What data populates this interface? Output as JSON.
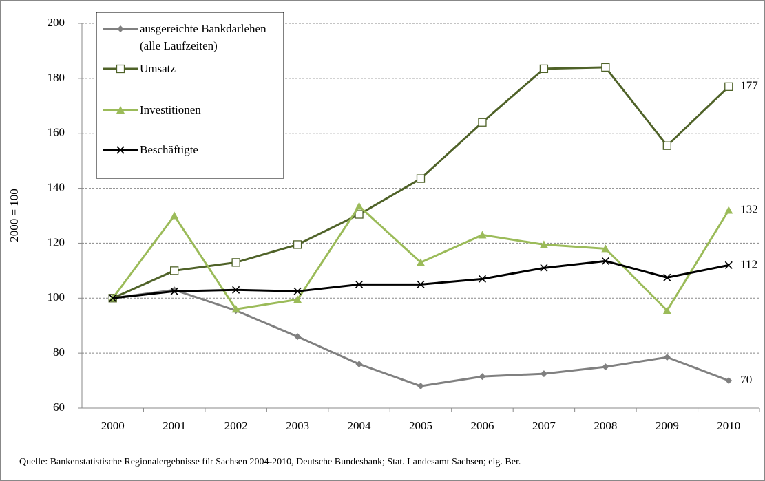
{
  "chart_data": {
    "type": "line",
    "y_axis_label": "2000 = 100",
    "source": "Quelle: Bankenstatistische Regionalergebnisse  für Sachsen 2004-2010, Deutsche Bundesbank; Stat. Landesamt Sachsen; eig. Ber.",
    "categories": [
      "2000",
      "2001",
      "2002",
      "2003",
      "2004",
      "2005",
      "2006",
      "2007",
      "2008",
      "2009",
      "2010"
    ],
    "series": [
      {
        "name": "ausgereichte Bankdarlehen (alle Laufzeiten)",
        "color": "#808080",
        "marker": "diamond",
        "values": [
          100,
          103,
          95.5,
          86,
          76,
          68,
          71.5,
          72.5,
          75,
          78.5,
          70
        ]
      },
      {
        "name": "Umsatz",
        "color": "#4f6228",
        "marker": "square",
        "values": [
          100,
          110,
          113,
          119.5,
          130.5,
          143.5,
          164,
          183.5,
          184,
          155.5,
          177
        ]
      },
      {
        "name": "Investitionen",
        "color": "#9bbb59",
        "marker": "triangle",
        "values": [
          100,
          130,
          96,
          99.5,
          133.5,
          113,
          123,
          119.5,
          118,
          95.5,
          132
        ]
      },
      {
        "name": "Beschäftigte",
        "color": "#000000",
        "marker": "x",
        "values": [
          100,
          102.5,
          103,
          102.5,
          105,
          105,
          107,
          111,
          113.5,
          107.5,
          112
        ]
      }
    ],
    "ylim": [
      60,
      200
    ],
    "yticks": [
      60,
      80,
      100,
      120,
      140,
      160,
      180,
      200
    ],
    "grid": true,
    "legend": "upper left"
  }
}
